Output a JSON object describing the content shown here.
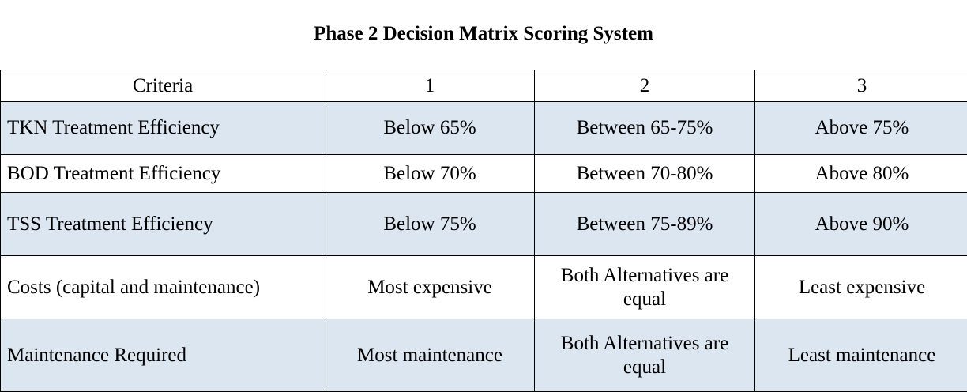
{
  "title": "Phase 2 Decision Matrix Scoring System",
  "table": {
    "headers": [
      "Criteria",
      "1",
      "2",
      "3"
    ],
    "rows": [
      {
        "criteria": "TKN Treatment Efficiency",
        "score_1": "Below 65%",
        "score_2": "Between 65-75%",
        "score_3": "Above 75%"
      },
      {
        "criteria": "BOD Treatment Efficiency",
        "score_1": "Below 70%",
        "score_2": "Between 70-80%",
        "score_3": "Above 80%"
      },
      {
        "criteria": "TSS Treatment Efficiency",
        "score_1": "Below 75%",
        "score_2": "Between 75-89%",
        "score_3": "Above 90%"
      },
      {
        "criteria": "Costs (capital and maintenance)",
        "score_1": "Most expensive",
        "score_2": "Both Alternatives are equal",
        "score_3": "Least expensive"
      },
      {
        "criteria": "Maintenance Required",
        "score_1": "Most maintenance",
        "score_2": "Both Alternatives are equal",
        "score_3": "Least maintenance"
      }
    ]
  },
  "colors": {
    "shaded_row": "#dce6f0",
    "border": "#000000"
  }
}
